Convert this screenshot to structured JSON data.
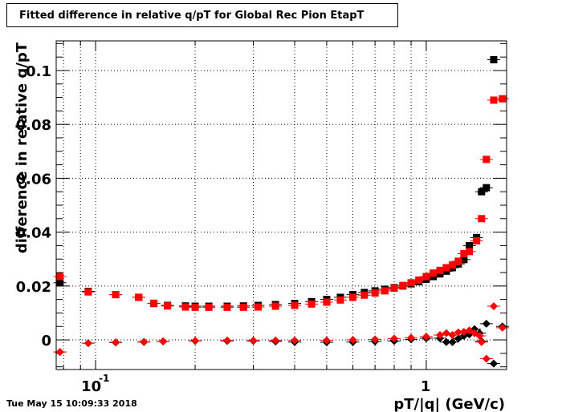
{
  "title": "Fitted difference in relative q/pT for Global Rec Pion EtapT",
  "timestamp": "Tue May 15 10:09:33 2018",
  "chart_data": {
    "type": "scatter",
    "xlabel": "pT/|q| (GeV/c)",
    "ylabel": "difference in relative q/pT",
    "xscale": "log",
    "xlim": [
      0.076,
      1.75
    ],
    "ylim": [
      -0.011,
      0.111
    ],
    "x_ticks": [
      {
        "value": 0.1,
        "label": "10",
        "exponent": "-1"
      },
      {
        "value": 1,
        "label": "1"
      }
    ],
    "y_ticks": [
      {
        "value": 0,
        "label": "0"
      },
      {
        "value": 0.02,
        "label": "0.02"
      },
      {
        "value": 0.04,
        "label": "0.04"
      },
      {
        "value": 0.06,
        "label": "0.06"
      },
      {
        "value": 0.08,
        "label": "0.08"
      },
      {
        "value": 0.1,
        "label": "0.1"
      }
    ],
    "grid": true,
    "colors": {
      "black_series": "#000000",
      "red_series": "#ff0000"
    },
    "series": [
      {
        "marker": "square",
        "color": "#000000",
        "points": [
          {
            "x": 0.078,
            "y": 0.0212
          },
          {
            "x": 0.095,
            "y": 0.018
          },
          {
            "x": 0.115,
            "y": 0.0168
          },
          {
            "x": 0.135,
            "y": 0.0158
          },
          {
            "x": 0.15,
            "y": 0.0135
          },
          {
            "x": 0.165,
            "y": 0.0128
          },
          {
            "x": 0.187,
            "y": 0.0126
          },
          {
            "x": 0.2,
            "y": 0.0125
          },
          {
            "x": 0.22,
            "y": 0.0125
          },
          {
            "x": 0.25,
            "y": 0.0125
          },
          {
            "x": 0.28,
            "y": 0.0126
          },
          {
            "x": 0.31,
            "y": 0.0128
          },
          {
            "x": 0.35,
            "y": 0.0131
          },
          {
            "x": 0.4,
            "y": 0.0135
          },
          {
            "x": 0.45,
            "y": 0.0142
          },
          {
            "x": 0.5,
            "y": 0.015
          },
          {
            "x": 0.55,
            "y": 0.0158
          },
          {
            "x": 0.6,
            "y": 0.0168
          },
          {
            "x": 0.65,
            "y": 0.0176
          },
          {
            "x": 0.7,
            "y": 0.0182
          },
          {
            "x": 0.75,
            "y": 0.0188
          },
          {
            "x": 0.8,
            "y": 0.0194
          },
          {
            "x": 0.85,
            "y": 0.02
          },
          {
            "x": 0.9,
            "y": 0.0208
          },
          {
            "x": 0.95,
            "y": 0.0216
          },
          {
            "x": 1.0,
            "y": 0.0225
          },
          {
            "x": 1.05,
            "y": 0.0235
          },
          {
            "x": 1.1,
            "y": 0.0245
          },
          {
            "x": 1.15,
            "y": 0.0255
          },
          {
            "x": 1.2,
            "y": 0.0268
          },
          {
            "x": 1.25,
            "y": 0.0282
          },
          {
            "x": 1.3,
            "y": 0.0298
          },
          {
            "x": 1.35,
            "y": 0.035
          },
          {
            "x": 1.42,
            "y": 0.038
          },
          {
            "x": 1.47,
            "y": 0.055
          },
          {
            "x": 1.52,
            "y": 0.0565
          },
          {
            "x": 1.6,
            "y": 0.104
          }
        ]
      },
      {
        "marker": "square",
        "color": "#ff0000",
        "points": [
          {
            "x": 0.078,
            "y": 0.0235
          },
          {
            "x": 0.095,
            "y": 0.0178
          },
          {
            "x": 0.115,
            "y": 0.0168
          },
          {
            "x": 0.135,
            "y": 0.0158
          },
          {
            "x": 0.15,
            "y": 0.0136
          },
          {
            "x": 0.165,
            "y": 0.0126
          },
          {
            "x": 0.187,
            "y": 0.0122
          },
          {
            "x": 0.2,
            "y": 0.0121
          },
          {
            "x": 0.22,
            "y": 0.0121
          },
          {
            "x": 0.25,
            "y": 0.0121
          },
          {
            "x": 0.28,
            "y": 0.0121
          },
          {
            "x": 0.31,
            "y": 0.0122
          },
          {
            "x": 0.35,
            "y": 0.0125
          },
          {
            "x": 0.4,
            "y": 0.0128
          },
          {
            "x": 0.45,
            "y": 0.0133
          },
          {
            "x": 0.5,
            "y": 0.014
          },
          {
            "x": 0.55,
            "y": 0.0148
          },
          {
            "x": 0.6,
            "y": 0.0158
          },
          {
            "x": 0.65,
            "y": 0.0166
          },
          {
            "x": 0.7,
            "y": 0.0174
          },
          {
            "x": 0.75,
            "y": 0.0182
          },
          {
            "x": 0.8,
            "y": 0.0192
          },
          {
            "x": 0.85,
            "y": 0.0202
          },
          {
            "x": 0.9,
            "y": 0.0212
          },
          {
            "x": 0.95,
            "y": 0.0222
          },
          {
            "x": 1.0,
            "y": 0.0235
          },
          {
            "x": 1.05,
            "y": 0.0248
          },
          {
            "x": 1.1,
            "y": 0.0258
          },
          {
            "x": 1.15,
            "y": 0.0268
          },
          {
            "x": 1.2,
            "y": 0.0278
          },
          {
            "x": 1.25,
            "y": 0.0292
          },
          {
            "x": 1.3,
            "y": 0.032
          },
          {
            "x": 1.35,
            "y": 0.0328
          },
          {
            "x": 1.42,
            "y": 0.0368
          },
          {
            "x": 1.47,
            "y": 0.045
          },
          {
            "x": 1.52,
            "y": 0.067
          },
          {
            "x": 1.6,
            "y": 0.089
          },
          {
            "x": 1.7,
            "y": 0.0895
          }
        ]
      },
      {
        "marker": "diamond",
        "color": "#000000",
        "points": [
          {
            "x": 0.078,
            "y": -0.0045
          },
          {
            "x": 0.095,
            "y": -0.0012
          },
          {
            "x": 0.115,
            "y": -0.001
          },
          {
            "x": 0.14,
            "y": -0.0008
          },
          {
            "x": 0.16,
            "y": -0.0006
          },
          {
            "x": 0.2,
            "y": -0.0004
          },
          {
            "x": 0.25,
            "y": -0.0004
          },
          {
            "x": 0.3,
            "y": -0.0004
          },
          {
            "x": 0.35,
            "y": -0.0006
          },
          {
            "x": 0.4,
            "y": -0.0008
          },
          {
            "x": 0.5,
            "y": -0.0009
          },
          {
            "x": 0.6,
            "y": -0.0008
          },
          {
            "x": 0.7,
            "y": -0.0006
          },
          {
            "x": 0.8,
            "y": -0.0004
          },
          {
            "x": 0.9,
            "y": 0.0002
          },
          {
            "x": 1.0,
            "y": 0.0006
          },
          {
            "x": 1.1,
            "y": 0.0006
          },
          {
            "x": 1.15,
            "y": -0.0008
          },
          {
            "x": 1.2,
            "y": -0.0008
          },
          {
            "x": 1.25,
            "y": 0.0005
          },
          {
            "x": 1.3,
            "y": 0.0015
          },
          {
            "x": 1.35,
            "y": 0.002
          },
          {
            "x": 1.4,
            "y": 0.004
          },
          {
            "x": 1.45,
            "y": 0.0025
          },
          {
            "x": 1.47,
            "y": -0.0005
          },
          {
            "x": 1.52,
            "y": 0.006
          },
          {
            "x": 1.6,
            "y": -0.0088
          },
          {
            "x": 1.7,
            "y": 0.005
          }
        ]
      },
      {
        "marker": "diamond",
        "color": "#ff0000",
        "points": [
          {
            "x": 0.078,
            "y": -0.0045
          },
          {
            "x": 0.095,
            "y": -0.0012
          },
          {
            "x": 0.115,
            "y": -0.0009
          },
          {
            "x": 0.14,
            "y": -0.0007
          },
          {
            "x": 0.16,
            "y": -0.0005
          },
          {
            "x": 0.2,
            "y": -0.0003
          },
          {
            "x": 0.25,
            "y": -0.0002
          },
          {
            "x": 0.3,
            "y": -0.0002
          },
          {
            "x": 0.35,
            "y": -0.0002
          },
          {
            "x": 0.4,
            "y": -0.0002
          },
          {
            "x": 0.5,
            "y": -0.0002
          },
          {
            "x": 0.6,
            "y": 0.0
          },
          {
            "x": 0.7,
            "y": 0.0002
          },
          {
            "x": 0.8,
            "y": 0.0005
          },
          {
            "x": 0.9,
            "y": 0.0008
          },
          {
            "x": 1.0,
            "y": 0.0012
          },
          {
            "x": 1.1,
            "y": 0.0018
          },
          {
            "x": 1.15,
            "y": 0.0025
          },
          {
            "x": 1.2,
            "y": 0.0018
          },
          {
            "x": 1.25,
            "y": 0.0028
          },
          {
            "x": 1.3,
            "y": 0.003
          },
          {
            "x": 1.35,
            "y": 0.0035
          },
          {
            "x": 1.4,
            "y": 0.0025
          },
          {
            "x": 1.45,
            "y": 0.0015
          },
          {
            "x": 1.47,
            "y": -0.0008
          },
          {
            "x": 1.52,
            "y": -0.007
          },
          {
            "x": 1.6,
            "y": 0.0125
          },
          {
            "x": 1.7,
            "y": 0.0045
          }
        ]
      }
    ]
  }
}
